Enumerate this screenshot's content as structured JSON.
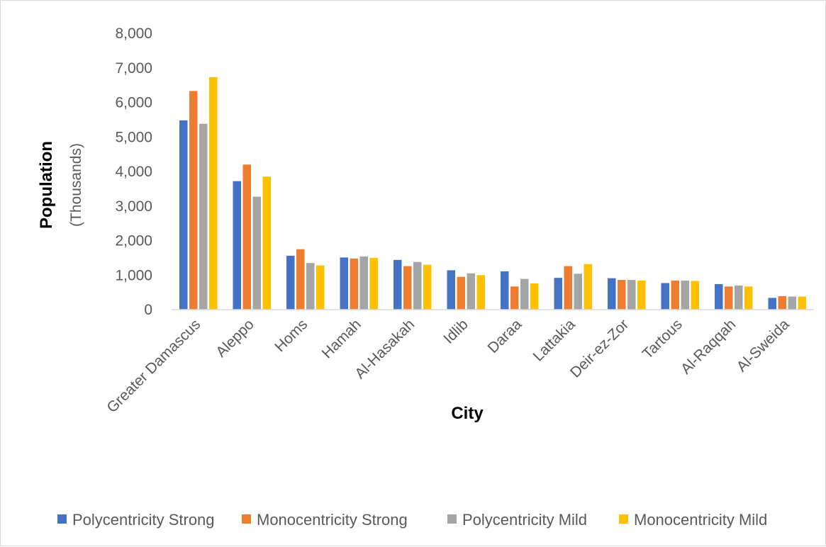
{
  "chart_data": {
    "type": "bar",
    "title": "",
    "xlabel": "City",
    "ylabel": "Population",
    "ylabel_sub": "(Thousands)",
    "ylim": [
      0,
      8000
    ],
    "y_ticks": [
      "0",
      "1,000",
      "2,000",
      "3,000",
      "4,000",
      "5,000",
      "6,000",
      "7,000",
      "8,000"
    ],
    "grid": false,
    "legend_position": "bottom",
    "categories": [
      "Greater Damascus",
      "Aleppo",
      "Homs",
      "Hamah",
      "Al-Hasakah",
      "Idlib",
      "Daraa",
      "Lattakia",
      "Deir-ez-Zor",
      "Tartous",
      "Al-Raqqah",
      "Al-Sweida"
    ],
    "series": [
      {
        "name": "Polycentricity Strong",
        "color": "#4472C4",
        "values": [
          5480,
          3720,
          1560,
          1510,
          1440,
          1140,
          1110,
          920,
          910,
          770,
          740,
          340
        ]
      },
      {
        "name": "Monocentricity Strong",
        "color": "#ED7D31",
        "values": [
          6330,
          4200,
          1750,
          1480,
          1260,
          950,
          670,
          1260,
          860,
          840,
          670,
          390
        ]
      },
      {
        "name": "Polycentricity Mild",
        "color": "#A5A5A5",
        "values": [
          5380,
          3270,
          1350,
          1540,
          1380,
          1050,
          890,
          1040,
          860,
          840,
          700,
          380
        ]
      },
      {
        "name": "Monocentricity Mild",
        "color": "#FFC000",
        "values": [
          6730,
          3850,
          1280,
          1500,
          1300,
          1000,
          760,
          1320,
          840,
          830,
          670,
          380
        ]
      }
    ]
  }
}
